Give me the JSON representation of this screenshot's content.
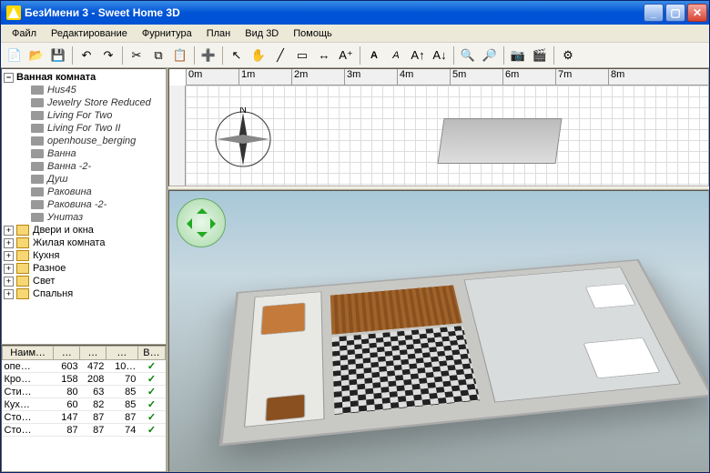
{
  "window": {
    "title": "БезИмени 3 - Sweet Home 3D"
  },
  "menu": {
    "file": "Файл",
    "edit": "Редактирование",
    "furniture": "Фурнитура",
    "plan": "План",
    "view3d": "Вид 3D",
    "help": "Помощь"
  },
  "ruler": {
    "marks": [
      "0m",
      "1m",
      "2m",
      "3m",
      "4m",
      "5m",
      "6m",
      "7m",
      "8m"
    ]
  },
  "tree": {
    "root": "Ванная комната",
    "children": [
      "Hus45",
      "Jewelry Store Reduced",
      "Living For Two",
      "Living For Two II",
      "openhouse_berging",
      "Ванна",
      "Ванна -2-",
      "Душ",
      "Раковина",
      "Раковина -2-",
      "Унитаз"
    ],
    "folders": [
      "Двери и окна",
      "Жилая комната",
      "Кухня",
      "Разное",
      "Свет",
      "Спальня"
    ]
  },
  "table": {
    "headers": [
      "Наим…",
      "…",
      "…",
      "…",
      "В…"
    ],
    "rows": [
      [
        "опе…",
        "603",
        "472",
        "10…",
        "✓"
      ],
      [
        "Кро…",
        "158",
        "208",
        "70",
        "✓"
      ],
      [
        "Сти…",
        "80",
        "63",
        "85",
        "✓"
      ],
      [
        "Кух…",
        "60",
        "82",
        "85",
        "✓"
      ],
      [
        "Сто…",
        "147",
        "87",
        "87",
        "✓"
      ],
      [
        "Сто…",
        "87",
        "87",
        "74",
        "✓"
      ]
    ]
  },
  "colors": {
    "titlebar": "#0053d4",
    "bg": "#ece9d8"
  }
}
